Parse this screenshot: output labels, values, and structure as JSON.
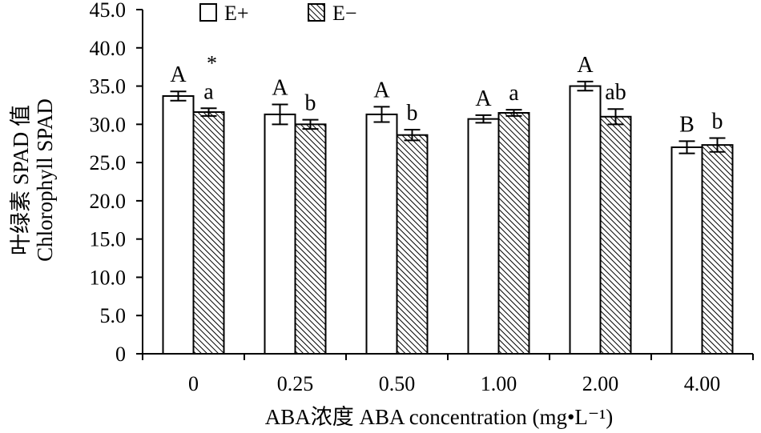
{
  "chart_data": {
    "type": "bar",
    "xlabel": "ABA浓度 ABA concentration (mg•L⁻¹)",
    "ylabel": [
      "叶绿素 SPAD 值",
      "Chlorophyll SPAD"
    ],
    "ylim": [
      0,
      45
    ],
    "yticks": [
      "0",
      "5.0",
      "10.0",
      "15.0",
      "20.0",
      "25.0",
      "30.0",
      "35.0",
      "40.0",
      "45.0"
    ],
    "categories": [
      "0",
      "0.25",
      "0.50",
      "1.00",
      "2.00",
      "4.00"
    ],
    "legend_position": "top-left",
    "grid": false,
    "series": [
      {
        "name": "E+",
        "pattern": "white",
        "values": [
          33.7,
          31.3,
          31.3,
          30.7,
          35.0,
          27.0
        ],
        "errors": [
          0.6,
          1.3,
          1.0,
          0.5,
          0.6,
          0.8
        ],
        "significance": [
          "A",
          "A",
          "A",
          "A",
          "A",
          "B"
        ]
      },
      {
        "name": "E−",
        "pattern": "hatched",
        "values": [
          31.6,
          30.0,
          28.6,
          31.5,
          31.0,
          27.3
        ],
        "errors": [
          0.5,
          0.6,
          0.7,
          0.4,
          1.0,
          0.9
        ],
        "significance": [
          "a",
          "b",
          "b",
          "a",
          "ab",
          "b"
        ]
      }
    ],
    "annotations": [
      {
        "category": "0",
        "text": "*"
      }
    ],
    "colors": {
      "bar_fill": "#ffffff",
      "stroke": "#000000",
      "hatch": "#000000"
    }
  }
}
